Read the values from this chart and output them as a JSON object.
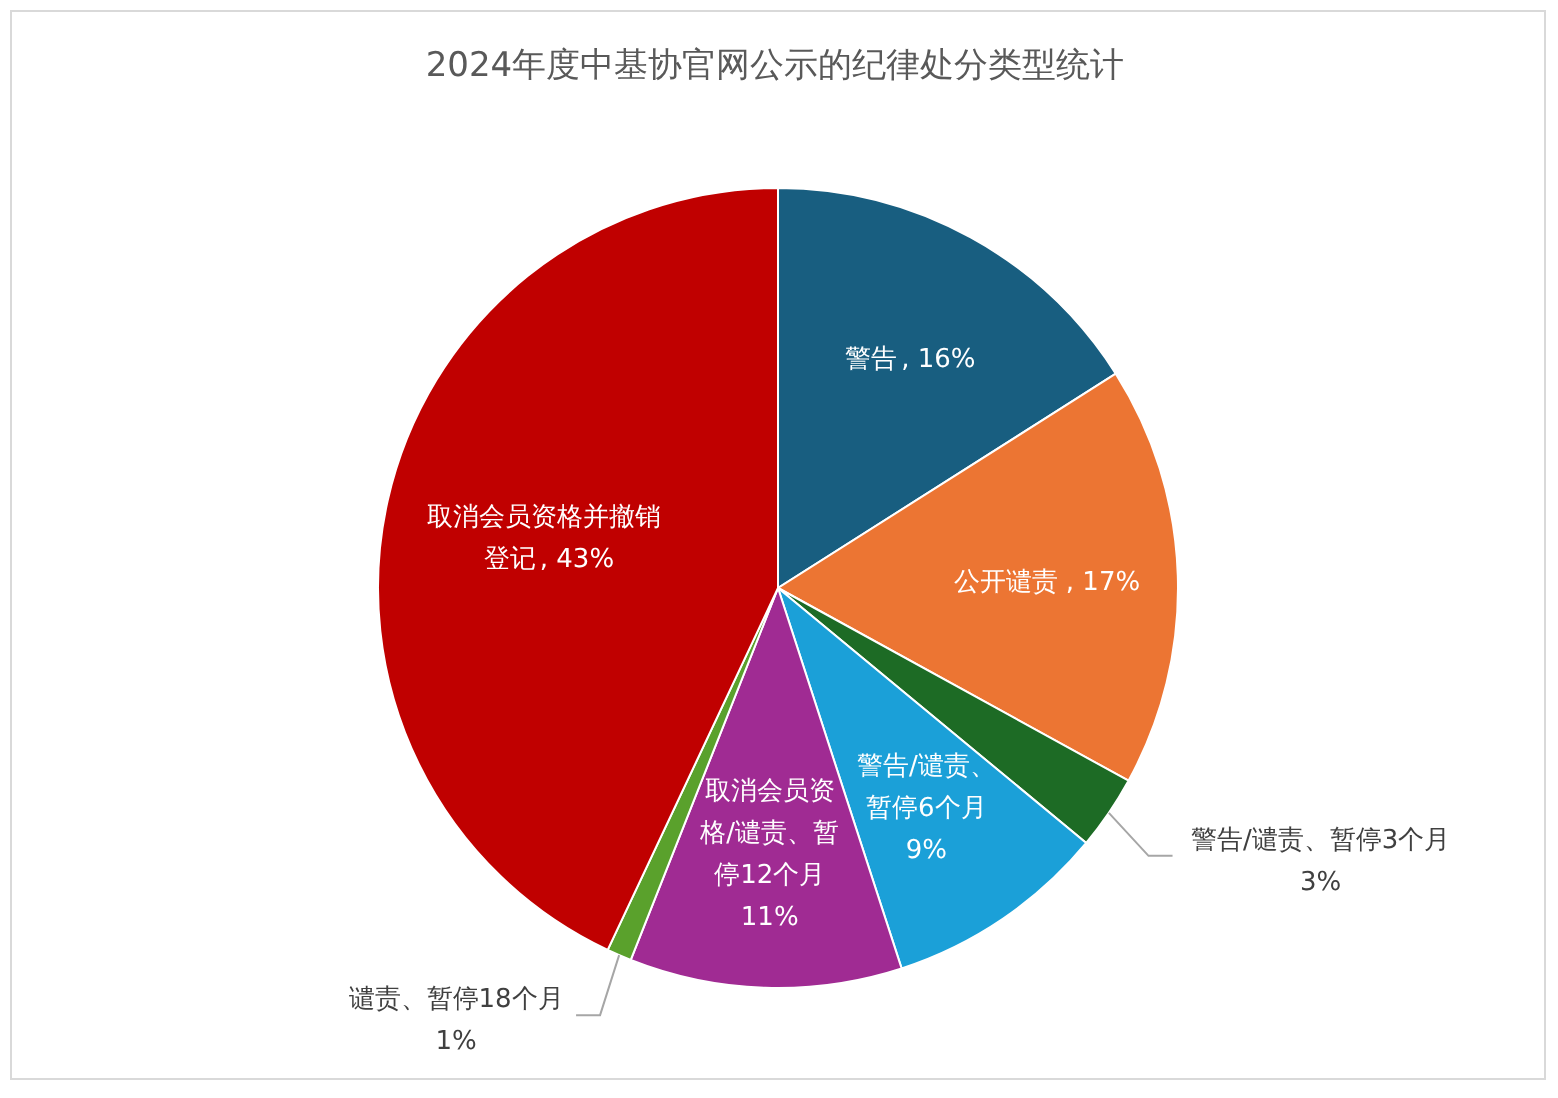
{
  "chart_data": {
    "type": "pie",
    "title": "2024年度中基协官网公示的纪律处分类型统计",
    "categories": [
      "警告",
      "公开谴责",
      "警告/谴责、暂停3个月",
      "警告/谴责、暂停6个月",
      "取消会员资格/谴责、暂停12个月",
      "谴责、暂停18个月",
      "取消会员资格并撤销登记"
    ],
    "values": [
      16,
      17,
      3,
      9,
      11,
      1,
      43
    ],
    "colors": [
      "#185e80",
      "#ec7533",
      "#1d6b25",
      "#1ba0d8",
      "#a02b93",
      "#5aa12c",
      "#c00000"
    ],
    "value_labels": [
      ", 16%",
      ", 17%",
      "3%",
      "9%",
      "11%",
      "1%",
      ", 43%"
    ]
  }
}
